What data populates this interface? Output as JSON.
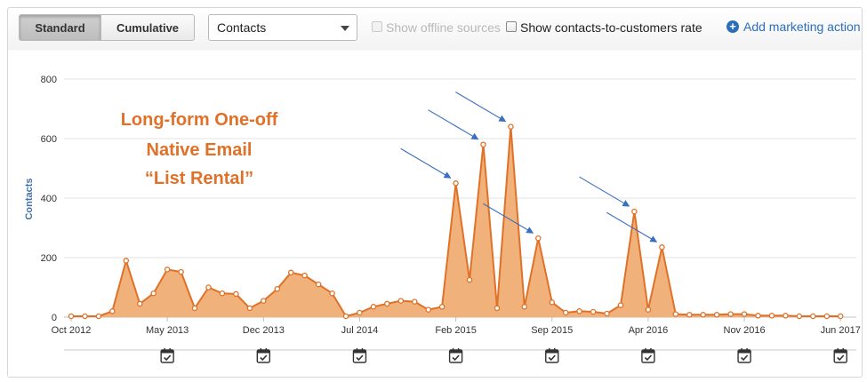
{
  "toolbar": {
    "view_buttons": [
      "Standard",
      "Cumulative"
    ],
    "active_view": "Standard",
    "metric_select": {
      "value": "Contacts"
    },
    "show_offline_sources": {
      "label": "Show offline sources",
      "checked": false,
      "disabled": true
    },
    "show_rate": {
      "label": "Show contacts-to-customers rate",
      "checked": false
    },
    "add_marketing_action": {
      "label": "Add marketing action",
      "icon": "plus-circle-icon"
    }
  },
  "colors": {
    "series": "#e07128",
    "area_fill": "#f0b27a",
    "arrow": "#3d6fc0",
    "accent_link": "#2a6ebb",
    "axis_title": "#4572a7"
  },
  "chart_data": {
    "type": "area",
    "title": "",
    "xlabel": "",
    "ylabel": "Contacts",
    "ylim": [
      0,
      800
    ],
    "y_ticks": [
      "0",
      "200",
      "400",
      "600",
      "800"
    ],
    "x_tick_labels": [
      "Oct 2012",
      "May 2013",
      "Dec 2013",
      "Jul 2014",
      "Feb 2015",
      "Sep 2015",
      "Apr 2016",
      "Nov 2016",
      "Jun 2017"
    ],
    "x_tick_month_index": [
      0,
      7,
      14,
      21,
      28,
      35,
      42,
      49,
      56
    ],
    "grid": true,
    "legend": "none",
    "series": [
      {
        "values": [
          3,
          3,
          3,
          20,
          190,
          45,
          80,
          160,
          152,
          30,
          100,
          80,
          78,
          30,
          55,
          95,
          150,
          140,
          110,
          80,
          3,
          15,
          35,
          45,
          55,
          52,
          25,
          35,
          450,
          125,
          580,
          30,
          640,
          35,
          265,
          50,
          15,
          20,
          18,
          12,
          40,
          355,
          25,
          235,
          10,
          8,
          8,
          8,
          10,
          10,
          5,
          5,
          5,
          3,
          3,
          3,
          3
        ]
      }
    ],
    "annotation_text": [
      "Long-form One-off",
      "Native Email",
      "“List Rental”"
    ],
    "arrow_targets_month_index": [
      28,
      30,
      32,
      34,
      41,
      43
    ],
    "marketing_action_month_index": [
      7,
      14,
      21,
      28,
      35,
      42,
      49,
      56
    ]
  }
}
